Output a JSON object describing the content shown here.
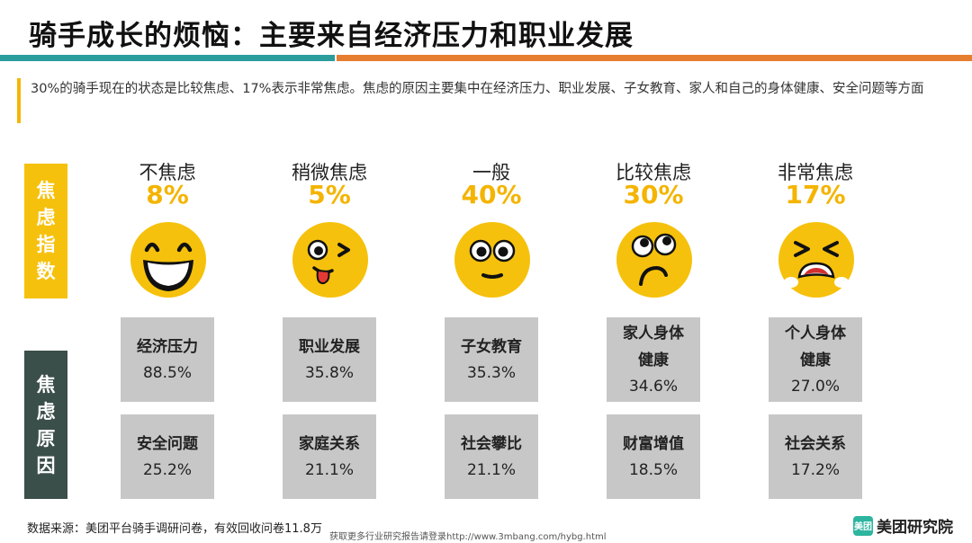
{
  "header": {
    "title": "骑手成长的烦恼：主要来自经济压力和职业发展"
  },
  "description": "30%的骑手现在的状态是比较焦虑、17%表示非常焦虑。焦虑的原因主要集中在经济压力、职业发展、子女教育、家人和自己的身体健康、安全问题等方面",
  "side_labels": {
    "index": [
      "焦",
      "虑",
      "指",
      "数"
    ],
    "reason": [
      "焦",
      "虑",
      "原",
      "因"
    ]
  },
  "colors": {
    "accent_yellow": "#f6c10c",
    "percent_yellow": "#f4b400",
    "dark_panel": "#3b4f4a",
    "card_gray": "#c7c7c7",
    "bar_teal": "#2a9d9c",
    "bar_orange": "#e67e30"
  },
  "levels": [
    {
      "label": "不焦虑",
      "percent": "8%",
      "face_icon": "laughing-face-icon",
      "reasons": [
        {
          "name": "经济压力",
          "percent": "88.5%"
        },
        {
          "name": "安全问题",
          "percent": "25.2%"
        }
      ]
    },
    {
      "label": "稍微焦虑",
      "percent": "5%",
      "face_icon": "winking-tongue-face-icon",
      "reasons": [
        {
          "name": "职业发展",
          "percent": "35.8%"
        },
        {
          "name": "家庭关系",
          "percent": "21.1%"
        }
      ]
    },
    {
      "label": "一般",
      "percent": "40%",
      "face_icon": "neutral-face-icon",
      "reasons": [
        {
          "name": "子女教育",
          "percent": "35.3%"
        },
        {
          "name": "社会攀比",
          "percent": "21.1%"
        }
      ]
    },
    {
      "label": "比较焦虑",
      "percent": "30%",
      "face_icon": "worried-face-icon",
      "reasons": [
        {
          "name": "家人身体健康",
          "name_lines": [
            "家人身体",
            "健康"
          ],
          "percent": "34.6%"
        },
        {
          "name": "财富增值",
          "percent": "18.5%"
        }
      ]
    },
    {
      "label": "非常焦虑",
      "percent": "17%",
      "face_icon": "distressed-face-icon",
      "reasons": [
        {
          "name": "个人身体健康",
          "name_lines": [
            "个人身体",
            "健康"
          ],
          "percent": "27.0%"
        },
        {
          "name": "社会关系",
          "percent": "17.2%"
        }
      ]
    }
  ],
  "footer": {
    "source": "数据来源：美团平台骑手调研问卷，有效回收问卷11.8万",
    "link_text": "获取更多行业研究报告请登录http://www.3mbang.com/hybg.html"
  },
  "logo": {
    "badge": "美团",
    "text": "美团研究院"
  }
}
